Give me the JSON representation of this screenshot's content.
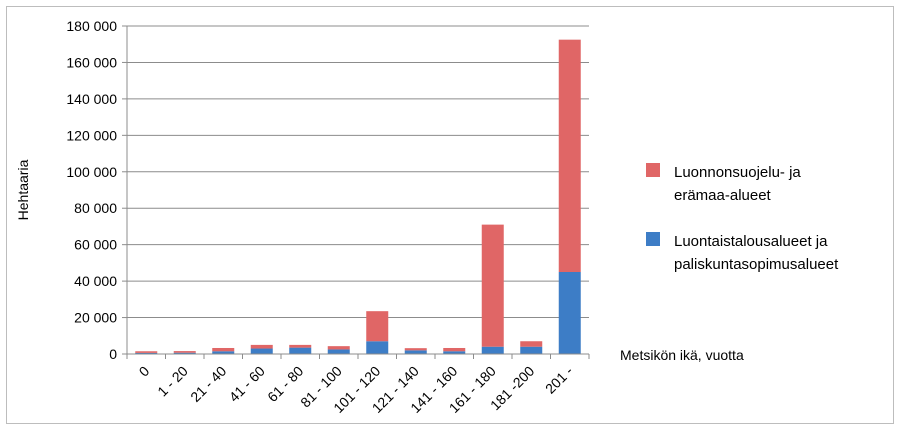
{
  "chart_data": {
    "type": "bar",
    "stacked": true,
    "categories": [
      "0",
      "1 - 20",
      "21 - 40",
      "41 - 60",
      "61 - 80",
      "81 - 100",
      "101 - 120",
      "121 - 140",
      "141 - 160",
      "161 - 180",
      "181 -200",
      "201 -"
    ],
    "series": [
      {
        "name": "Luontaistalousalueet ja paliskuntasopimusalueet",
        "color": "#3d7dc6",
        "values": [
          600,
          700,
          1500,
          3000,
          3500,
          2500,
          7000,
          2000,
          1500,
          4000,
          4000,
          45000
        ]
      },
      {
        "name": "Luonnonsuojelu- ja erämaa-alueet",
        "color": "#e06666",
        "values": [
          900,
          900,
          1800,
          2000,
          1500,
          1800,
          16500,
          1200,
          1800,
          67000,
          3000,
          127500
        ]
      }
    ],
    "xlabel": "Metsikön ikä, vuotta",
    "ylabel": "Hehtaaria",
    "ylim": [
      0,
      180000
    ],
    "yticks": [
      "0",
      "20 000",
      "40 000",
      "60 000",
      "80 000",
      "100 000",
      "120 000",
      "140 000",
      "160 000",
      "180 000"
    ],
    "grid": true,
    "legend_position": "right",
    "legend": [
      {
        "lines": [
          "Luonnonsuojelu- ja",
          "erämaa-alueet"
        ],
        "color": "#e06666"
      },
      {
        "lines": [
          "Luontaistalousalueet ja",
          "paliskuntasopimusalueet"
        ],
        "color": "#3d7dc6"
      }
    ]
  }
}
